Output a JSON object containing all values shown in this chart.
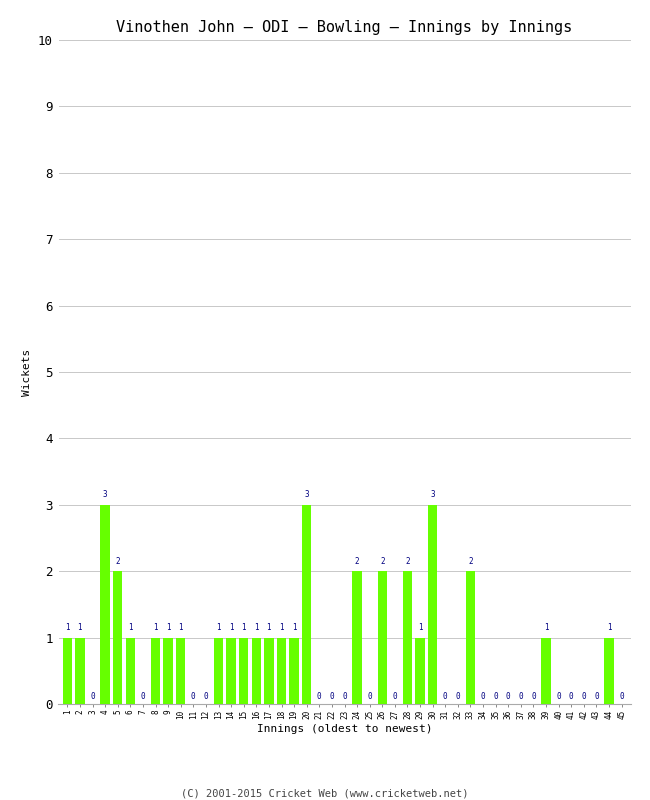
{
  "title": "Vinothen John – ODI – Bowling – Innings by Innings",
  "xlabel": "Innings (oldest to newest)",
  "ylabel": "Wickets",
  "ylim": [
    0,
    10
  ],
  "yticks": [
    0,
    1,
    2,
    3,
    4,
    5,
    6,
    7,
    8,
    9,
    10
  ],
  "bar_color": "#66ff00",
  "label_color": "#000080",
  "background_color": "#ffffff",
  "grid_color": "#c8c8c8",
  "footer": "(C) 2001-2015 Cricket Web (www.cricketweb.net)",
  "innings": [
    1,
    2,
    3,
    4,
    5,
    6,
    7,
    8,
    9,
    10,
    11,
    12,
    13,
    14,
    15,
    16,
    17,
    18,
    19,
    20,
    21,
    22,
    23,
    24,
    25,
    26,
    27,
    28,
    29,
    30,
    31,
    32,
    33,
    34,
    35,
    36,
    37,
    38,
    39,
    40,
    41,
    42,
    43,
    44,
    45
  ],
  "wickets": [
    1,
    1,
    0,
    3,
    2,
    1,
    0,
    1,
    1,
    1,
    0,
    0,
    1,
    1,
    1,
    1,
    1,
    1,
    1,
    3,
    0,
    0,
    0,
    2,
    0,
    2,
    0,
    2,
    1,
    3,
    0,
    0,
    2,
    0,
    0,
    0,
    0,
    0,
    1,
    0,
    0,
    0,
    0,
    1,
    0
  ]
}
